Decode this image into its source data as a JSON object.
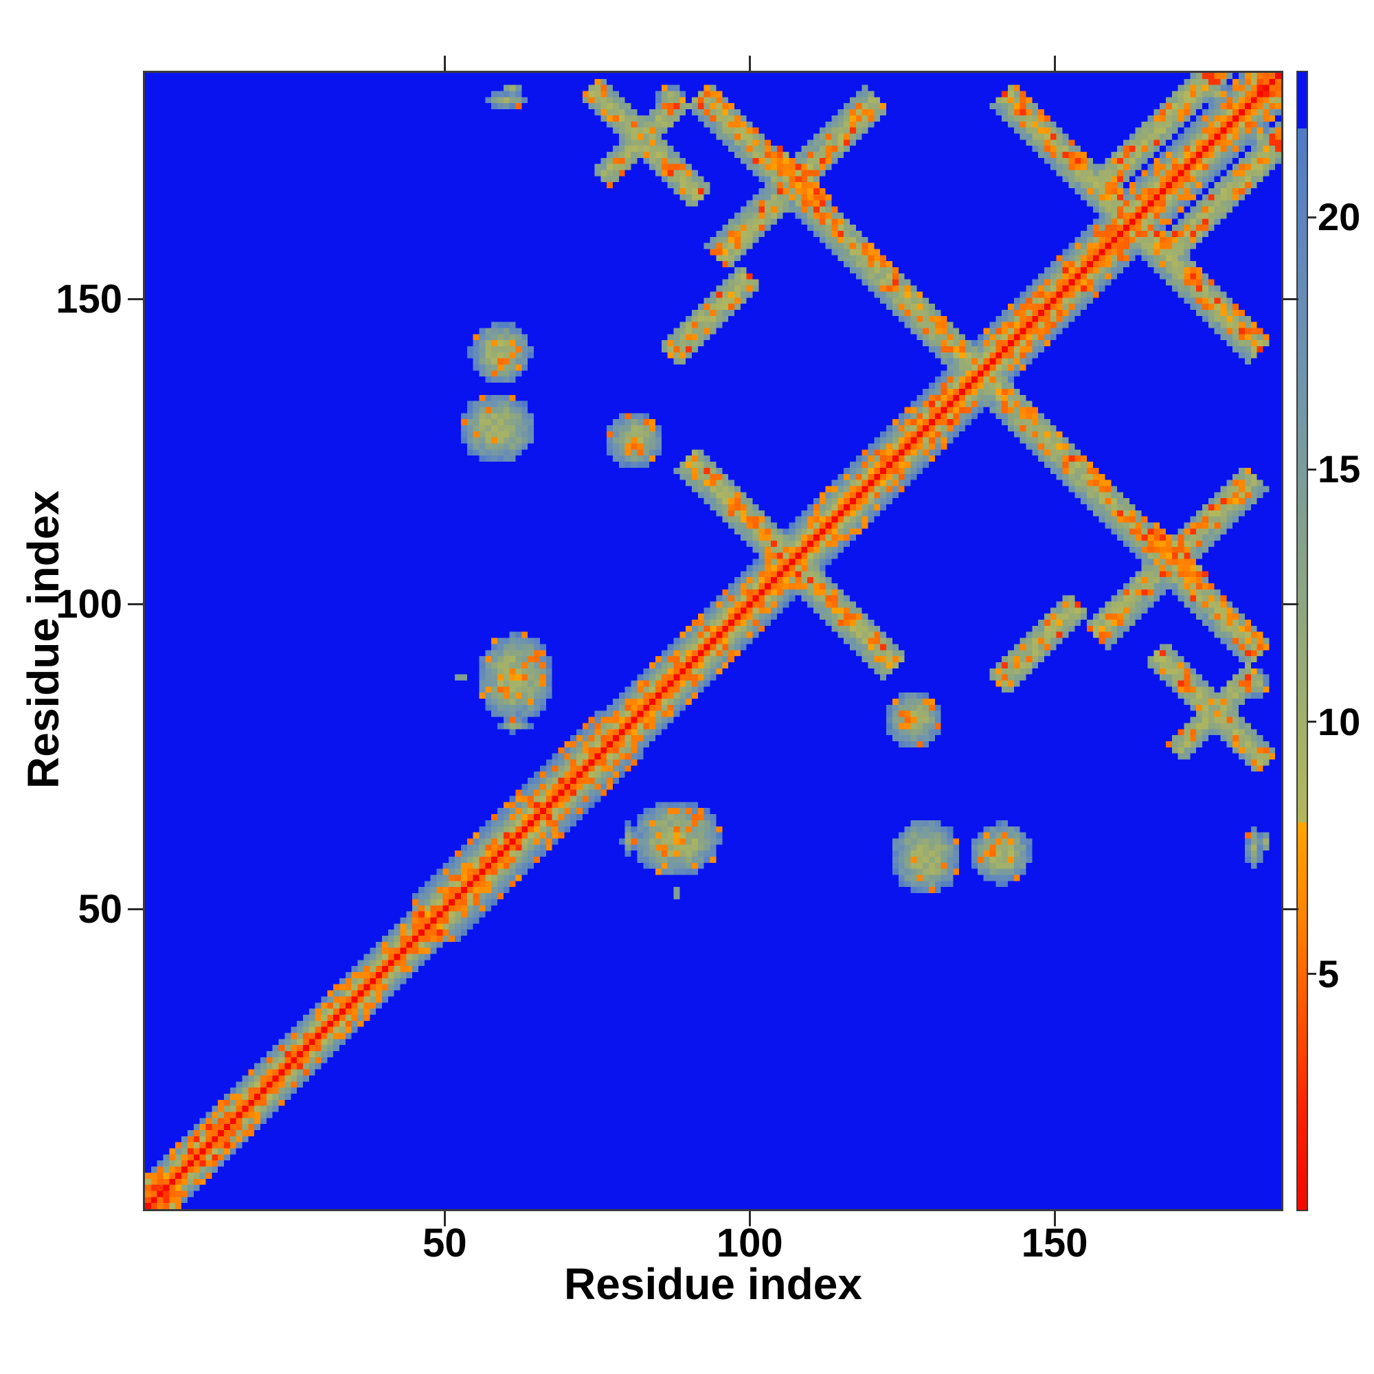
{
  "figure": {
    "background_color": "#ffffff"
  },
  "chart_data": {
    "type": "heatmap",
    "title": "",
    "xlabel": "Residue index",
    "ylabel": "Residue index",
    "n_residues": 187,
    "x_ticks": [
      50,
      100,
      150
    ],
    "x_tick_labels": [
      "50",
      "100",
      "150"
    ],
    "y_ticks": [
      50,
      100,
      150
    ],
    "y_tick_labels": [
      "50",
      "100",
      "150"
    ],
    "grid": false,
    "legend": "colorbar-right",
    "colorbar": {
      "tick_values": [
        5,
        10,
        15,
        20
      ],
      "tick_labels": [
        "5",
        "10",
        "15",
        "20"
      ],
      "vmin": 0.3,
      "vmax": 22.9
    },
    "solid_blue_above": 21.8,
    "background_color": "#0813f0",
    "colormap_stops_low": [
      [
        0.3,
        "#f50800"
      ],
      [
        2.2,
        "#fb2000"
      ],
      [
        3.4,
        "#ff4000"
      ],
      [
        4.8,
        "#ff6300"
      ],
      [
        6.2,
        "#ff8500"
      ],
      [
        7.3,
        "#ff9700"
      ],
      [
        8.0,
        "#ffa600"
      ]
    ],
    "colormap_stops_high": [
      [
        8.0,
        "#b3b75c"
      ],
      [
        10.0,
        "#a2b06b"
      ],
      [
        12.0,
        "#90a77e"
      ],
      [
        14.0,
        "#81a090"
      ],
      [
        15.5,
        "#789aa1"
      ],
      [
        17.5,
        "#6c91b1"
      ],
      [
        19.5,
        "#6187bd"
      ],
      [
        21.8,
        "#4f7ac7"
      ]
    ],
    "diagonal_segments": [
      {
        "from": 1,
        "to": 13,
        "half_width": 5,
        "flank_step": 3.3,
        "speckle": 0.45
      },
      {
        "from": 13,
        "to": 45,
        "half_width": 5,
        "flank_step": 3.4,
        "speckle": 0.32
      },
      {
        "from": 45,
        "to": 76,
        "half_width": 7,
        "flank_step": 2.6,
        "speckle": 0.5
      },
      {
        "from": 76,
        "to": 96,
        "half_width": 6,
        "flank_step": 2.9,
        "speckle": 0.42
      },
      {
        "from": 96,
        "to": 140,
        "half_width": 6,
        "flank_step": 3.0,
        "speckle": 0.3
      },
      {
        "from": 140,
        "to": 187,
        "half_width": 6,
        "flank_step": 2.8,
        "speckle": 0.42
      }
    ],
    "antiparallel_contacts": [
      {
        "name": "hairpin-92-155",
        "center": [
          123.5,
          152.5
        ],
        "half_len": 31.5,
        "half_width": 2.4,
        "core": 9.3,
        "speckle": 0.3
      },
      {
        "name": "hairpin-90-124",
        "center": [
          107,
          107
        ],
        "half_len": 17,
        "half_width": 2.2,
        "core": 9.3,
        "speckle": 0.28
      },
      {
        "name": "hairpin-142-184",
        "center": [
          163,
          163
        ],
        "half_len": 21,
        "half_width": 2.4,
        "core": 9.0,
        "speckle": 0.38
      },
      {
        "name": "hairpin-74-92",
        "center": [
          83,
          176
        ],
        "half_len": 9,
        "half_width": 1.8,
        "core": 9.6,
        "speckle": 0.18
      },
      {
        "name": "x-center-dense",
        "center": [
          108,
          170
        ],
        "half_len": 4,
        "half_width": 1.2,
        "core": 5.2,
        "speckle": 0.5
      }
    ],
    "parallel_contacts": [
      {
        "name": "pack-95-121",
        "center": [
          108,
          170
        ],
        "half_len": 13,
        "half_width": 2.2,
        "core": 9.2,
        "speckle": 0.3
      },
      {
        "name": "pack-87-100",
        "center": [
          93.5,
          147.5
        ],
        "half_len": 6.5,
        "half_width": 1.8,
        "core": 9.4,
        "speckle": 0.22
      },
      {
        "name": "pack-76-89",
        "center": [
          82.5,
          176.5
        ],
        "half_len": 6.5,
        "half_width": 1.6,
        "core": 9.7,
        "speckle": 0.15
      },
      {
        "name": "pack-158-182",
        "center": [
          170,
          181
        ],
        "half_len": 12,
        "half_width": 1.8,
        "core": 9.0,
        "speckle": 0.35
      }
    ],
    "contact_blobs": [
      {
        "center": [
          59,
          141.5
        ],
        "rx": 4.5,
        "ry": 4.5,
        "core": 9.4,
        "speckle": 0.1
      },
      {
        "center": [
          58.5,
          129
        ],
        "rx": 5.5,
        "ry": 5.0,
        "core": 9.4,
        "speckle": 0.08
      },
      {
        "center": [
          61.5,
          88
        ],
        "rx": 5.5,
        "ry": 6.5,
        "core": 9.2,
        "speckle": 0.15
      },
      {
        "center": [
          61.5,
          80
        ],
        "rx": 2.2,
        "ry": 0.9,
        "core": 10.5,
        "speckle": 0
      },
      {
        "center": [
          52.5,
          88
        ],
        "rx": 1.2,
        "ry": 0.8,
        "core": 11,
        "speckle": 0
      },
      {
        "center": [
          81,
          127
        ],
        "rx": 4.0,
        "ry": 4.0,
        "core": 9.6,
        "speckle": 0.2
      },
      {
        "center": [
          60,
          183
        ],
        "rx": 3.2,
        "ry": 1.1,
        "core": 10.3,
        "speckle": 0.2
      },
      {
        "center": [
          61,
          185.3
        ],
        "rx": 1.8,
        "ry": 0.7,
        "core": 11,
        "speckle": 0
      },
      {
        "center": [
          87,
          183.5
        ],
        "rx": 2.0,
        "ry": 1.6,
        "core": 10,
        "speckle": 0.1
      },
      {
        "center": [
          177,
          184
        ],
        "rx": 1.6,
        "ry": 1.2,
        "core": 10.6,
        "speckle": 0
      },
      {
        "center": [
          108,
          170
        ],
        "rx": 1.6,
        "ry": 1.6,
        "core": 3.2,
        "speckle": 0
      },
      {
        "center": [
          2.5,
          2.5
        ],
        "rx": 3.5,
        "ry": 3.5,
        "core": 1.2,
        "speckle": 0.3
      },
      {
        "center": [
          185,
          185
        ],
        "rx": 2.8,
        "ry": 2.8,
        "core": 1.3,
        "speckle": 0.3
      }
    ]
  }
}
